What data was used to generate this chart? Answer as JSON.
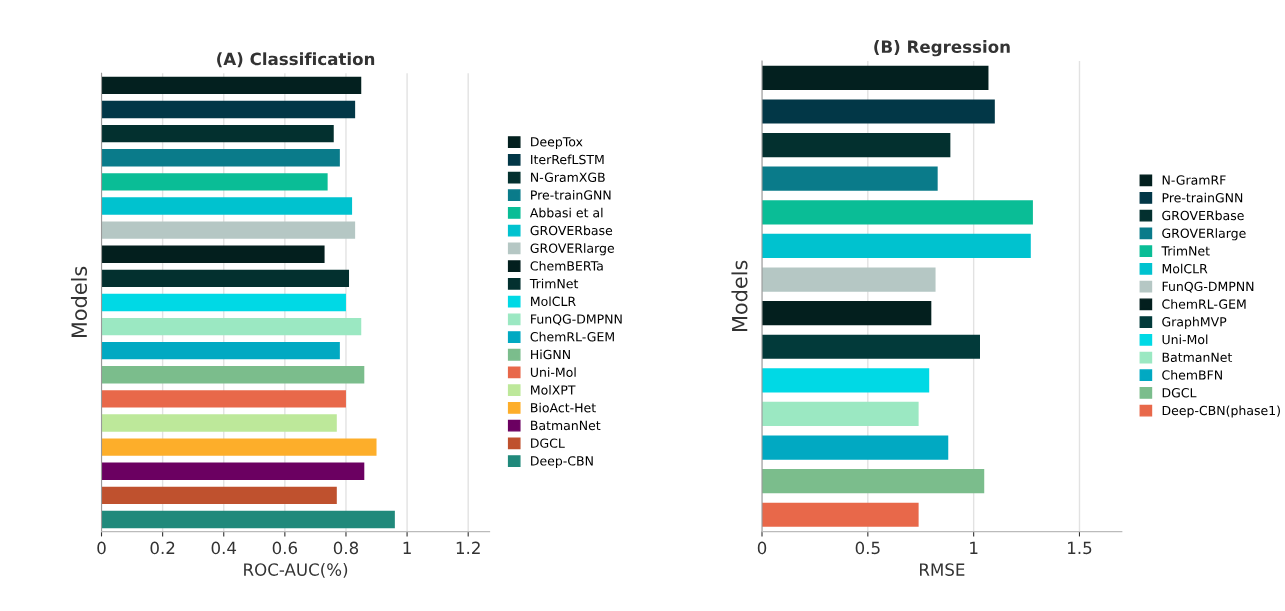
{
  "chart_data": [
    {
      "type": "bar",
      "orientation": "horizontal",
      "title": "(A) Classification",
      "xlabel": "ROC-AUC(%)",
      "ylabel": "Models",
      "xlim": [
        0,
        1.27
      ],
      "xticks": [
        0,
        0.2,
        0.4,
        0.6,
        0.8,
        1,
        1.2
      ],
      "grid": "x",
      "legend": "right",
      "categories": [
        null,
        null,
        null,
        null,
        null,
        null,
        null,
        null,
        null,
        null,
        null,
        null,
        null,
        null,
        null,
        null,
        null,
        null,
        null
      ],
      "series": [
        {
          "name": "DeepTox",
          "color": "#03201f",
          "values": [
            0.85,
            null,
            null,
            null,
            null,
            null,
            null,
            null,
            null,
            null,
            null,
            null,
            null,
            null,
            null,
            null,
            null,
            null,
            null
          ]
        },
        {
          "name": "IterRefLSTM",
          "color": "#023747",
          "values": [
            null,
            0.83,
            null,
            null,
            null,
            null,
            null,
            null,
            null,
            null,
            null,
            null,
            null,
            null,
            null,
            null,
            null,
            null,
            null
          ]
        },
        {
          "name": "N-GramXGB",
          "color": "#03302f",
          "values": [
            null,
            null,
            0.76,
            null,
            null,
            null,
            null,
            null,
            null,
            null,
            null,
            null,
            null,
            null,
            null,
            null,
            null,
            null,
            null
          ]
        },
        {
          "name": "Pre-trainGNN",
          "color": "#0a7b8a",
          "values": [
            null,
            null,
            null,
            0.78,
            null,
            null,
            null,
            null,
            null,
            null,
            null,
            null,
            null,
            null,
            null,
            null,
            null,
            null,
            null
          ]
        },
        {
          "name": "Abbasi et al",
          "color": "#0abd96",
          "values": [
            null,
            null,
            null,
            null,
            0.74,
            null,
            null,
            null,
            null,
            null,
            null,
            null,
            null,
            null,
            null,
            null,
            null,
            null,
            null
          ]
        },
        {
          "name": "GROVERbase",
          "color": "#00c2cf",
          "values": [
            null,
            null,
            null,
            null,
            null,
            0.82,
            null,
            null,
            null,
            null,
            null,
            null,
            null,
            null,
            null,
            null,
            null,
            null,
            null
          ]
        },
        {
          "name": "GROVERlarge",
          "color": "#b5c7c4",
          "values": [
            null,
            null,
            null,
            null,
            null,
            null,
            0.83,
            null,
            null,
            null,
            null,
            null,
            null,
            null,
            null,
            null,
            null,
            null,
            null
          ]
        },
        {
          "name": "ChemBERTa",
          "color": "#031f1e",
          "values": [
            null,
            null,
            null,
            null,
            null,
            null,
            null,
            0.73,
            null,
            null,
            null,
            null,
            null,
            null,
            null,
            null,
            null,
            null,
            null
          ]
        },
        {
          "name": "TrimNet",
          "color": "#03302f",
          "values": [
            null,
            null,
            null,
            null,
            null,
            null,
            null,
            null,
            0.81,
            null,
            null,
            null,
            null,
            null,
            null,
            null,
            null,
            null,
            null
          ]
        },
        {
          "name": "MolCLR",
          "color": "#00d9e5",
          "values": [
            null,
            null,
            null,
            null,
            null,
            null,
            null,
            null,
            null,
            0.8,
            null,
            null,
            null,
            null,
            null,
            null,
            null,
            null,
            null
          ]
        },
        {
          "name": "FunQG-DMPNN",
          "color": "#9be8c2",
          "values": [
            null,
            null,
            null,
            null,
            null,
            null,
            null,
            null,
            null,
            null,
            0.85,
            null,
            null,
            null,
            null,
            null,
            null,
            null,
            null
          ]
        },
        {
          "name": "ChemRL-GEM",
          "color": "#01a9c2",
          "values": [
            null,
            null,
            null,
            null,
            null,
            null,
            null,
            null,
            null,
            null,
            null,
            0.78,
            null,
            null,
            null,
            null,
            null,
            null,
            null
          ]
        },
        {
          "name": "HiGNN",
          "color": "#7bbd8c",
          "values": [
            null,
            null,
            null,
            null,
            null,
            null,
            null,
            null,
            null,
            null,
            null,
            null,
            0.86,
            null,
            null,
            null,
            null,
            null,
            null
          ]
        },
        {
          "name": "Uni-Mol",
          "color": "#e8684a",
          "values": [
            null,
            null,
            null,
            null,
            null,
            null,
            null,
            null,
            null,
            null,
            null,
            null,
            null,
            0.8,
            null,
            null,
            null,
            null,
            null
          ]
        },
        {
          "name": "MolXPT",
          "color": "#bde89a",
          "values": [
            null,
            null,
            null,
            null,
            null,
            null,
            null,
            null,
            null,
            null,
            null,
            null,
            null,
            null,
            0.77,
            null,
            null,
            null,
            null
          ]
        },
        {
          "name": "BioAct-Het",
          "color": "#fdae2a",
          "values": [
            null,
            null,
            null,
            null,
            null,
            null,
            null,
            null,
            null,
            null,
            null,
            null,
            null,
            null,
            null,
            0.9,
            null,
            null,
            null
          ]
        },
        {
          "name": "BatmanNet",
          "color": "#6b0061",
          "values": [
            null,
            null,
            null,
            null,
            null,
            null,
            null,
            null,
            null,
            null,
            null,
            null,
            null,
            null,
            null,
            null,
            0.86,
            null,
            null
          ]
        },
        {
          "name": "DGCL",
          "color": "#bf512e",
          "values": [
            null,
            null,
            null,
            null,
            null,
            null,
            null,
            null,
            null,
            null,
            null,
            null,
            null,
            null,
            null,
            null,
            null,
            0.77,
            null
          ]
        },
        {
          "name": "Deep-CBN",
          "color": "#20897b",
          "values": [
            null,
            null,
            null,
            null,
            null,
            null,
            null,
            null,
            null,
            null,
            null,
            null,
            null,
            null,
            null,
            null,
            null,
            null,
            0.96
          ]
        }
      ]
    },
    {
      "type": "bar",
      "orientation": "horizontal",
      "title": "(B) Regression",
      "xlabel": "RMSE",
      "ylabel": "Models",
      "xlim": [
        0,
        1.7
      ],
      "xticks": [
        0,
        0.5,
        1,
        1.5
      ],
      "grid": "x",
      "legend": "right",
      "categories": [
        null,
        null,
        null,
        null,
        null,
        null,
        null,
        null,
        null,
        null,
        null,
        null,
        null,
        null
      ],
      "series": [
        {
          "name": "N-GramRF",
          "color": "#03201f",
          "values": [
            1.07,
            null,
            null,
            null,
            null,
            null,
            null,
            null,
            null,
            null,
            null,
            null,
            null,
            null
          ]
        },
        {
          "name": "Pre-trainGNN",
          "color": "#023747",
          "values": [
            null,
            1.1,
            null,
            null,
            null,
            null,
            null,
            null,
            null,
            null,
            null,
            null,
            null,
            null
          ]
        },
        {
          "name": "GROVERbase",
          "color": "#03302f",
          "values": [
            null,
            null,
            0.89,
            null,
            null,
            null,
            null,
            null,
            null,
            null,
            null,
            null,
            null,
            null
          ]
        },
        {
          "name": "GROVERlarge",
          "color": "#0a7b8a",
          "values": [
            null,
            null,
            null,
            0.83,
            null,
            null,
            null,
            null,
            null,
            null,
            null,
            null,
            null,
            null
          ]
        },
        {
          "name": "TrimNet",
          "color": "#0abd96",
          "values": [
            null,
            null,
            null,
            null,
            1.28,
            null,
            null,
            null,
            null,
            null,
            null,
            null,
            null,
            null
          ]
        },
        {
          "name": "MolCLR",
          "color": "#00c2cf",
          "values": [
            null,
            null,
            null,
            null,
            null,
            1.27,
            null,
            null,
            null,
            null,
            null,
            null,
            null,
            null
          ]
        },
        {
          "name": "FunQG-DMPNN",
          "color": "#b5c7c4",
          "values": [
            null,
            null,
            null,
            null,
            null,
            null,
            0.82,
            null,
            null,
            null,
            null,
            null,
            null,
            null
          ]
        },
        {
          "name": "ChemRL-GEM",
          "color": "#031f1e",
          "values": [
            null,
            null,
            null,
            null,
            null,
            null,
            null,
            0.8,
            null,
            null,
            null,
            null,
            null,
            null
          ]
        },
        {
          "name": "GraphMVP",
          "color": "#023a3a",
          "values": [
            null,
            null,
            null,
            null,
            null,
            null,
            null,
            null,
            1.03,
            null,
            null,
            null,
            null,
            null
          ]
        },
        {
          "name": "Uni-Mol",
          "color": "#00d9e5",
          "values": [
            null,
            null,
            null,
            null,
            null,
            null,
            null,
            null,
            null,
            0.79,
            null,
            null,
            null,
            null
          ]
        },
        {
          "name": "BatmanNet",
          "color": "#9be8c2",
          "values": [
            null,
            null,
            null,
            null,
            null,
            null,
            null,
            null,
            null,
            null,
            0.74,
            null,
            null,
            null
          ]
        },
        {
          "name": "ChemBFN",
          "color": "#01a9c2",
          "values": [
            null,
            null,
            null,
            null,
            null,
            null,
            null,
            null,
            null,
            null,
            null,
            0.88,
            null,
            null
          ]
        },
        {
          "name": "DGCL",
          "color": "#7bbd8c",
          "values": [
            null,
            null,
            null,
            null,
            null,
            null,
            null,
            null,
            null,
            null,
            null,
            null,
            1.05,
            null
          ]
        },
        {
          "name": "Deep-CBN(phase1)",
          "color": "#e8684a",
          "values": [
            null,
            null,
            null,
            null,
            null,
            null,
            null,
            null,
            null,
            null,
            null,
            null,
            null,
            0.74
          ]
        }
      ]
    }
  ]
}
